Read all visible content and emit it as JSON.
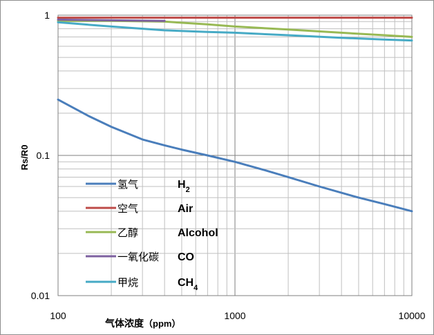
{
  "chart_data": {
    "type": "line",
    "xlabel": "气体浓度",
    "xlabel_unit": "（ppm）",
    "ylabel": "Rs/R0",
    "xscale": "log",
    "yscale": "log",
    "xlim": [
      100,
      10000
    ],
    "ylim": [
      0.01,
      1
    ],
    "x_ticks": [
      "100",
      "1000",
      "10000"
    ],
    "y_ticks": [
      "0.01",
      "0.1",
      "1"
    ],
    "grid": true,
    "legend_position": "bottom-left",
    "series": [
      {
        "name": "氢气",
        "name_en": "H2",
        "color": "#4a7ebb",
        "x": [
          100,
          150,
          200,
          300,
          400,
          500,
          700,
          1000,
          1500,
          2000,
          3000,
          5000,
          7000,
          10000
        ],
        "y": [
          0.25,
          0.19,
          0.16,
          0.13,
          0.118,
          0.11,
          0.1,
          0.09,
          0.078,
          0.07,
          0.06,
          0.05,
          0.045,
          0.04
        ]
      },
      {
        "name": "空气",
        "name_en": "Air",
        "color": "#be4b48",
        "x": [
          100,
          10000
        ],
        "y": [
          0.96,
          0.96
        ]
      },
      {
        "name": "乙醇",
        "name_en": "Alcohol",
        "color": "#98b954",
        "x": [
          100,
          200,
          400,
          700,
          1000,
          2000,
          4000,
          7000,
          10000
        ],
        "y": [
          0.91,
          0.91,
          0.9,
          0.86,
          0.83,
          0.79,
          0.75,
          0.72,
          0.7
        ]
      },
      {
        "name": "一氧化碳",
        "name_en": "CO",
        "color": "#7d60a0",
        "x": [
          100,
          200,
          400
        ],
        "y": [
          0.93,
          0.92,
          0.91
        ]
      },
      {
        "name": "甲烷",
        "name_en": "CH4",
        "color": "#46aac5",
        "x": [
          100,
          200,
          400,
          700,
          1000,
          2000,
          4000,
          7000,
          10000
        ],
        "y": [
          0.89,
          0.83,
          0.78,
          0.76,
          0.75,
          0.72,
          0.69,
          0.67,
          0.66
        ]
      }
    ]
  }
}
